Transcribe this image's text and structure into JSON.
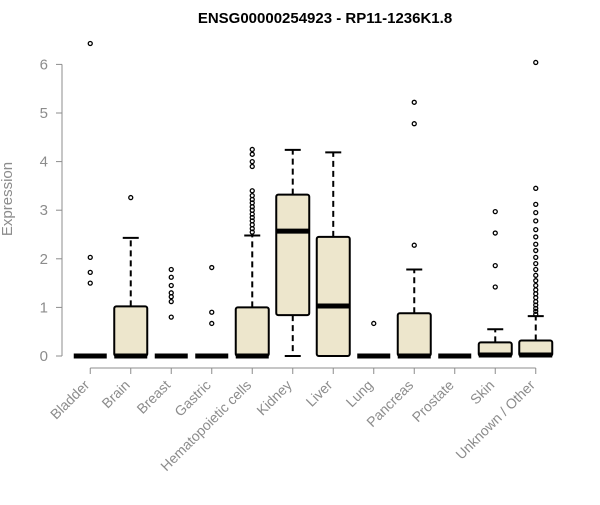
{
  "chart_data": {
    "type": "boxplot",
    "title": "ENSG00000254923 - RP11-1236K1.8",
    "xlabel": "",
    "ylabel": "Expression",
    "ylim": [
      0,
      6.6
    ],
    "yticks": [
      "0",
      "1",
      "2",
      "3",
      "4",
      "5",
      "6"
    ],
    "grid": false,
    "box_fill": "#ede6cc",
    "box_stroke": "#000000",
    "categories": [
      "Bladder",
      "Brain",
      "Breast",
      "Gastric",
      "Hematopoietic cells",
      "Kidney",
      "Liver",
      "Lung",
      "Pancreas",
      "Prostate",
      "Skin",
      "Unknown / Other"
    ],
    "boxes": [
      {
        "category": "Bladder",
        "min": 0,
        "q1": 0,
        "median": 0,
        "q3": 0,
        "max": 0,
        "outliers": [
          1.5,
          1.72,
          2.03,
          6.43
        ]
      },
      {
        "category": "Brain",
        "min": 0,
        "q1": 0,
        "median": 0,
        "q3": 1.02,
        "max": 2.43,
        "outliers": [
          3.26
        ]
      },
      {
        "category": "Breast",
        "min": 0,
        "q1": 0,
        "median": 0,
        "q3": 0,
        "max": 0,
        "outliers": [
          0.8,
          1.12,
          1.22,
          1.3,
          1.45,
          1.62,
          1.78
        ]
      },
      {
        "category": "Gastric",
        "min": 0,
        "q1": 0,
        "median": 0,
        "q3": 0,
        "max": 0,
        "outliers": [
          0.67,
          0.9,
          1.82
        ]
      },
      {
        "category": "Hematopoietic cells",
        "min": 0,
        "q1": 0,
        "median": 0,
        "q3": 1.0,
        "max": 2.48,
        "outliers": [
          2.55,
          2.62,
          2.7,
          2.78,
          2.85,
          2.92,
          3.0,
          3.07,
          3.15,
          3.22,
          3.3,
          3.4,
          3.9,
          4.0,
          4.15,
          4.25
        ]
      },
      {
        "category": "Kidney",
        "min": 0,
        "q1": 0.84,
        "median": 2.57,
        "q3": 3.32,
        "max": 4.24,
        "outliers": []
      },
      {
        "category": "Liver",
        "min": 0,
        "q1": 0,
        "median": 1.03,
        "q3": 2.45,
        "max": 4.19,
        "outliers": []
      },
      {
        "category": "Lung",
        "min": 0,
        "q1": 0,
        "median": 0,
        "q3": 0,
        "max": 0,
        "outliers": [
          0.67
        ]
      },
      {
        "category": "Pancreas",
        "min": 0,
        "q1": 0,
        "median": 0,
        "q3": 0.88,
        "max": 1.78,
        "outliers": [
          2.28,
          4.78,
          5.22
        ]
      },
      {
        "category": "Prostate",
        "min": 0,
        "q1": 0,
        "median": 0,
        "q3": 0,
        "max": 0,
        "outliers": []
      },
      {
        "category": "Skin",
        "min": 0,
        "q1": 0,
        "median": 0.02,
        "q3": 0.28,
        "max": 0.55,
        "outliers": [
          1.42,
          1.86,
          2.53,
          2.97
        ]
      },
      {
        "category": "Unknown / Other",
        "min": 0,
        "q1": 0,
        "median": 0.02,
        "q3": 0.32,
        "max": 0.82,
        "outliers": [
          0.86,
          0.92,
          0.98,
          1.05,
          1.12,
          1.2,
          1.28,
          1.36,
          1.45,
          1.55,
          1.66,
          1.78,
          1.9,
          2.03,
          2.17,
          2.3,
          2.45,
          2.6,
          2.78,
          2.95,
          3.12,
          3.45,
          6.04
        ]
      }
    ]
  }
}
